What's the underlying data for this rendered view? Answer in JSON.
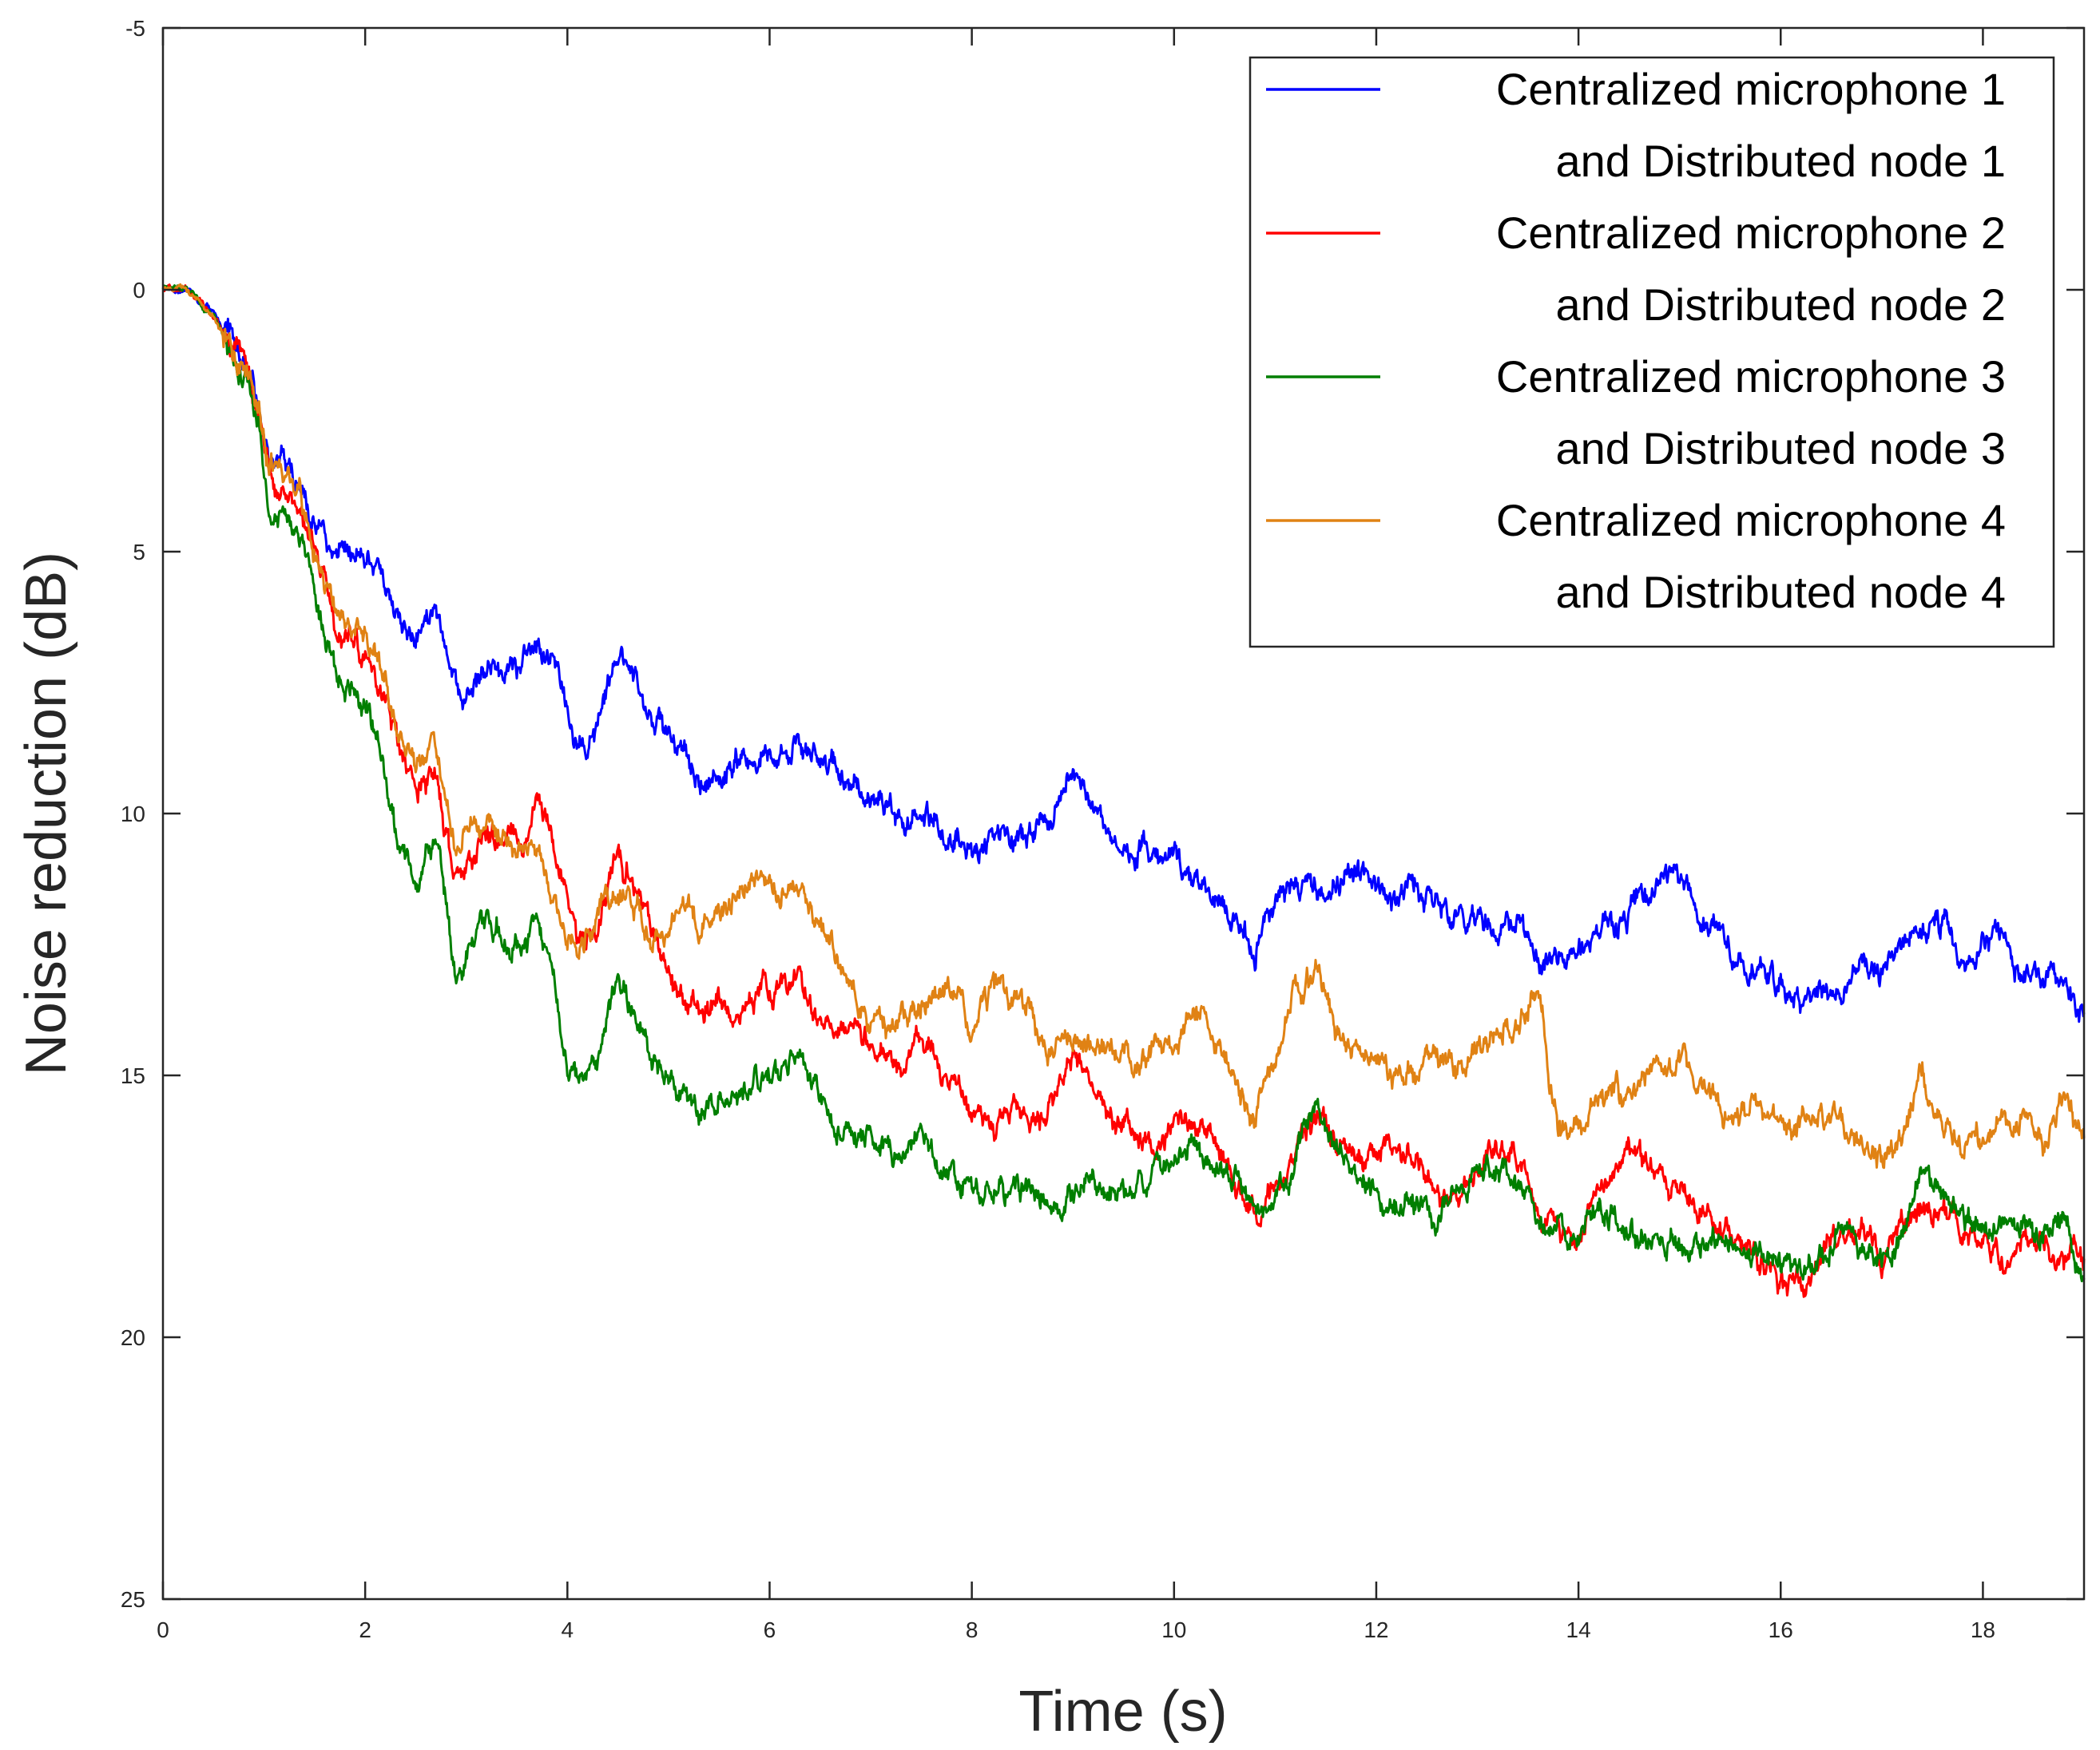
{
  "chart_data": {
    "type": "line",
    "title": "",
    "xlabel": "Time (s)",
    "ylabel": "Noise reduction (dB)",
    "xlim": [
      0,
      19
    ],
    "ylim": [
      -5,
      25
    ],
    "y_reversed": true,
    "x_ticks": [
      0,
      2,
      4,
      6,
      8,
      10,
      12,
      14,
      16,
      18
    ],
    "y_ticks": [
      -5,
      0,
      5,
      10,
      15,
      20,
      25
    ],
    "grid": false,
    "legend_position": "top-right",
    "series": [
      {
        "name": "Centralized microphone 1",
        "name_line2": "and Distributed node 1",
        "color": "#0000ff",
        "noise": 0.18,
        "seed": 11,
        "x": [
          0,
          0.25,
          0.5,
          0.7,
          0.85,
          0.95,
          1.05,
          1.2,
          1.35,
          1.5,
          1.7,
          1.9,
          2.05,
          2.2,
          2.35,
          2.5,
          2.6,
          2.7,
          2.8,
          2.9,
          3.0,
          3.2,
          3.4,
          3.6,
          3.7,
          3.85,
          4.0,
          4.1,
          4.3,
          4.5,
          4.7,
          4.9,
          5.05,
          5.2,
          5.35,
          5.5,
          5.7,
          5.9,
          6.1,
          6.3,
          6.5,
          6.7,
          6.9,
          7.1,
          7.3,
          7.5,
          7.7,
          7.9,
          8.0,
          8.2,
          8.4,
          8.6,
          8.8,
          9.0,
          9.2,
          9.4,
          9.6,
          9.8,
          10.0,
          10.2,
          10.4,
          10.6,
          10.8,
          11.0,
          11.2,
          11.4,
          11.6,
          11.8,
          12.0,
          12.2,
          12.4,
          12.6,
          12.8,
          13.0,
          13.2,
          13.4,
          13.6,
          13.8,
          14.0,
          14.2,
          14.4,
          14.6,
          14.8,
          15.0,
          15.2,
          15.4,
          15.6,
          15.8,
          16.0,
          16.2,
          16.4,
          16.6,
          16.8,
          17.0,
          17.2,
          17.4,
          17.6,
          17.8,
          18.0,
          18.2,
          18.4,
          18.6,
          18.8,
          19.0
        ],
        "y": [
          0,
          0.05,
          0.4,
          1.1,
          1.5,
          2.0,
          3.1,
          3.3,
          3.6,
          4.5,
          4.9,
          5.0,
          5.0,
          5.5,
          6.3,
          6.6,
          6.2,
          6.1,
          7.0,
          7.6,
          7.8,
          7.3,
          7.2,
          7.0,
          6.7,
          7.2,
          8.2,
          8.8,
          8.3,
          7.0,
          7.6,
          8.3,
          8.6,
          9.1,
          9.4,
          9.2,
          9.0,
          8.9,
          8.8,
          8.8,
          9.0,
          9.3,
          9.5,
          9.7,
          10.2,
          9.9,
          10.4,
          10.4,
          10.9,
          10.5,
          10.5,
          10.3,
          10.1,
          9.1,
          9.9,
          10.6,
          10.7,
          10.9,
          10.8,
          11.3,
          11.6,
          11.9,
          12.6,
          11.8,
          11.6,
          11.3,
          11.4,
          11.2,
          11.3,
          11.6,
          11.4,
          11.7,
          12.3,
          11.9,
          12.3,
          11.9,
          12.9,
          12.6,
          12.5,
          12.3,
          12.1,
          11.7,
          11.3,
          11.2,
          12.0,
          12.4,
          12.8,
          13.0,
          13.4,
          13.7,
          13.2,
          13.4,
          12.8,
          13.0,
          12.5,
          12.3,
          12.1,
          13.2,
          12.4,
          12.4,
          13.3,
          13.1,
          12.9,
          13.8
        ]
      },
      {
        "name": "Centralized microphone 2",
        "name_line2": "and Distributed node 2",
        "color": "#ff0000",
        "noise": 0.18,
        "seed": 23,
        "x": [
          0,
          0.25,
          0.5,
          0.7,
          0.85,
          0.95,
          1.05,
          1.2,
          1.35,
          1.5,
          1.7,
          1.9,
          2.05,
          2.2,
          2.35,
          2.5,
          2.6,
          2.7,
          2.8,
          2.9,
          3.0,
          3.2,
          3.4,
          3.6,
          3.7,
          3.85,
          4.0,
          4.1,
          4.3,
          4.5,
          4.7,
          4.9,
          5.05,
          5.2,
          5.35,
          5.5,
          5.7,
          5.9,
          6.1,
          6.3,
          6.5,
          6.7,
          6.9,
          7.1,
          7.3,
          7.5,
          7.7,
          7.9,
          8.0,
          8.2,
          8.4,
          8.6,
          8.8,
          9.0,
          9.2,
          9.4,
          9.6,
          9.8,
          10.0,
          10.2,
          10.4,
          10.6,
          10.8,
          11.0,
          11.2,
          11.4,
          11.6,
          11.8,
          12.0,
          12.2,
          12.4,
          12.6,
          12.8,
          13.0,
          13.2,
          13.4,
          13.6,
          13.8,
          14.0,
          14.2,
          14.4,
          14.6,
          14.8,
          15.0,
          15.2,
          15.4,
          15.6,
          15.8,
          16.0,
          16.2,
          16.4,
          16.6,
          16.8,
          17.0,
          17.2,
          17.4,
          17.6,
          17.8,
          18.0,
          18.2,
          18.4,
          18.6,
          18.8,
          19.0
        ],
        "y": [
          0,
          0.05,
          0.5,
          1.2,
          1.6,
          2.3,
          3.6,
          4.0,
          4.2,
          5.0,
          6.3,
          6.8,
          7.0,
          7.8,
          8.8,
          9.5,
          9.3,
          9.2,
          10.3,
          11.3,
          10.8,
          10.3,
          10.5,
          10.5,
          9.6,
          10.6,
          11.5,
          12.5,
          12.3,
          10.6,
          11.6,
          12.6,
          13.3,
          13.6,
          13.9,
          13.6,
          13.7,
          13.4,
          13.3,
          13.2,
          13.8,
          14.1,
          14.0,
          14.5,
          15.1,
          14.3,
          14.9,
          15.2,
          15.7,
          16.1,
          15.5,
          16.0,
          15.4,
          14.8,
          15.2,
          15.9,
          16.1,
          16.4,
          16.0,
          15.9,
          16.3,
          17.1,
          17.8,
          17.2,
          16.5,
          15.8,
          16.2,
          16.6,
          16.4,
          16.1,
          16.7,
          17.2,
          17.4,
          16.9,
          16.3,
          16.6,
          17.6,
          18.0,
          18.1,
          17.3,
          16.6,
          16.4,
          17.0,
          17.2,
          17.5,
          17.9,
          18.2,
          18.5,
          18.9,
          19.0,
          18.4,
          18.1,
          18.0,
          18.6,
          17.8,
          17.5,
          17.6,
          17.9,
          18.1,
          18.6,
          18.0,
          18.3,
          18.7,
          18.5
        ]
      },
      {
        "name": "Centralized microphone 3",
        "name_line2": "and Distributed node 3",
        "color": "#007f00",
        "noise": 0.18,
        "seed": 37,
        "x": [
          0,
          0.25,
          0.5,
          0.7,
          0.85,
          0.95,
          1.05,
          1.2,
          1.35,
          1.5,
          1.7,
          1.9,
          2.05,
          2.2,
          2.35,
          2.5,
          2.6,
          2.7,
          2.8,
          2.9,
          3.0,
          3.2,
          3.4,
          3.6,
          3.7,
          3.85,
          4.0,
          4.1,
          4.3,
          4.5,
          4.7,
          4.9,
          5.05,
          5.2,
          5.35,
          5.5,
          5.7,
          5.9,
          6.1,
          6.3,
          6.5,
          6.7,
          6.9,
          7.1,
          7.3,
          7.5,
          7.7,
          7.9,
          8.0,
          8.2,
          8.4,
          8.6,
          8.8,
          9.0,
          9.2,
          9.4,
          9.6,
          9.8,
          10.0,
          10.2,
          10.4,
          10.6,
          10.8,
          11.0,
          11.2,
          11.4,
          11.6,
          11.8,
          12.0,
          12.2,
          12.4,
          12.6,
          12.8,
          13.0,
          13.2,
          13.4,
          13.6,
          13.8,
          14.0,
          14.2,
          14.4,
          14.6,
          14.8,
          15.0,
          15.2,
          15.4,
          15.6,
          15.8,
          16.0,
          16.2,
          16.4,
          16.6,
          16.8,
          17.0,
          17.2,
          17.4,
          17.6,
          17.8,
          18.0,
          18.2,
          18.4,
          18.6,
          18.8,
          19.0
        ],
        "y": [
          0,
          0.05,
          0.5,
          1.3,
          1.8,
          2.6,
          4.2,
          4.4,
          4.6,
          5.6,
          7.4,
          7.9,
          8.2,
          9.3,
          10.7,
          11.2,
          10.8,
          10.5,
          11.6,
          13.1,
          12.6,
          12.1,
          12.4,
          12.5,
          12.0,
          13.2,
          14.8,
          15.0,
          14.7,
          13.0,
          14.1,
          14.9,
          15.3,
          15.5,
          15.8,
          15.4,
          15.3,
          15.0,
          14.8,
          14.6,
          15.4,
          16.1,
          16.2,
          16.4,
          16.6,
          16.0,
          16.8,
          17.0,
          17.2,
          17.3,
          17.1,
          17.2,
          17.5,
          17.3,
          17.0,
          17.2,
          17.3,
          16.9,
          16.6,
          16.5,
          16.8,
          17.0,
          17.6,
          17.3,
          16.6,
          15.6,
          16.4,
          16.8,
          17.3,
          17.6,
          17.4,
          17.7,
          17.2,
          17.0,
          16.8,
          17.0,
          17.8,
          18.1,
          18.0,
          17.6,
          17.8,
          18.3,
          18.2,
          18.1,
          18.4,
          18.0,
          18.2,
          18.3,
          18.6,
          18.8,
          18.4,
          17.9,
          18.3,
          18.6,
          18.1,
          16.6,
          17.3,
          17.6,
          18.0,
          17.8,
          17.9,
          18.0,
          17.6,
          18.9
        ]
      },
      {
        "name": "Centralized microphone 4",
        "name_line2": "and Distributed node 4",
        "color": "#e08214",
        "noise": 0.18,
        "seed": 53,
        "x": [
          0,
          0.25,
          0.5,
          0.7,
          0.85,
          0.95,
          1.05,
          1.2,
          1.35,
          1.5,
          1.7,
          1.9,
          2.05,
          2.2,
          2.35,
          2.5,
          2.6,
          2.7,
          2.8,
          2.9,
          3.0,
          3.2,
          3.4,
          3.6,
          3.7,
          3.85,
          4.0,
          4.1,
          4.3,
          4.5,
          4.7,
          4.9,
          5.05,
          5.2,
          5.35,
          5.5,
          5.7,
          5.9,
          6.1,
          6.3,
          6.5,
          6.7,
          6.9,
          7.1,
          7.3,
          7.5,
          7.7,
          7.9,
          8.0,
          8.2,
          8.4,
          8.6,
          8.8,
          9.0,
          9.2,
          9.4,
          9.6,
          9.8,
          10.0,
          10.2,
          10.4,
          10.6,
          10.8,
          11.0,
          11.2,
          11.4,
          11.6,
          11.8,
          12.0,
          12.2,
          12.4,
          12.6,
          12.8,
          13.0,
          13.2,
          13.4,
          13.6,
          13.8,
          14.0,
          14.2,
          14.4,
          14.6,
          14.8,
          15.0,
          15.2,
          15.4,
          15.6,
          15.8,
          16.0,
          16.2,
          16.4,
          16.6,
          16.8,
          17.0,
          17.2,
          17.4,
          17.6,
          17.8,
          18.0,
          18.2,
          18.4,
          18.6,
          18.8,
          19.0
        ],
        "y": [
          0,
          0.05,
          0.5,
          1.2,
          1.5,
          2.2,
          3.3,
          3.6,
          3.9,
          4.9,
          6.1,
          6.6,
          6.8,
          7.6,
          8.6,
          9.1,
          8.8,
          8.6,
          9.8,
          10.7,
          10.3,
          10.1,
          10.6,
          10.8,
          10.9,
          11.6,
          12.5,
          12.6,
          12.0,
          11.4,
          11.9,
          12.4,
          12.0,
          11.8,
          12.1,
          11.8,
          11.6,
          11.2,
          11.4,
          11.5,
          12.1,
          12.8,
          13.6,
          14.1,
          14.0,
          13.7,
          13.3,
          13.5,
          14.2,
          13.3,
          13.5,
          13.9,
          14.6,
          14.2,
          14.3,
          14.6,
          14.8,
          14.5,
          14.6,
          13.6,
          14.4,
          15.0,
          15.9,
          14.6,
          13.4,
          12.9,
          14.2,
          14.6,
          14.7,
          15.1,
          14.9,
          14.7,
          14.9,
          14.4,
          14.1,
          13.9,
          13.4,
          16.0,
          15.9,
          15.5,
          15.4,
          15.3,
          14.9,
          14.7,
          15.3,
          15.7,
          15.8,
          15.6,
          15.9,
          16.1,
          15.6,
          15.9,
          16.3,
          16.7,
          16.2,
          15.0,
          16.0,
          16.2,
          16.1,
          15.9,
          15.8,
          16.3,
          15.3,
          16.2
        ]
      }
    ]
  }
}
